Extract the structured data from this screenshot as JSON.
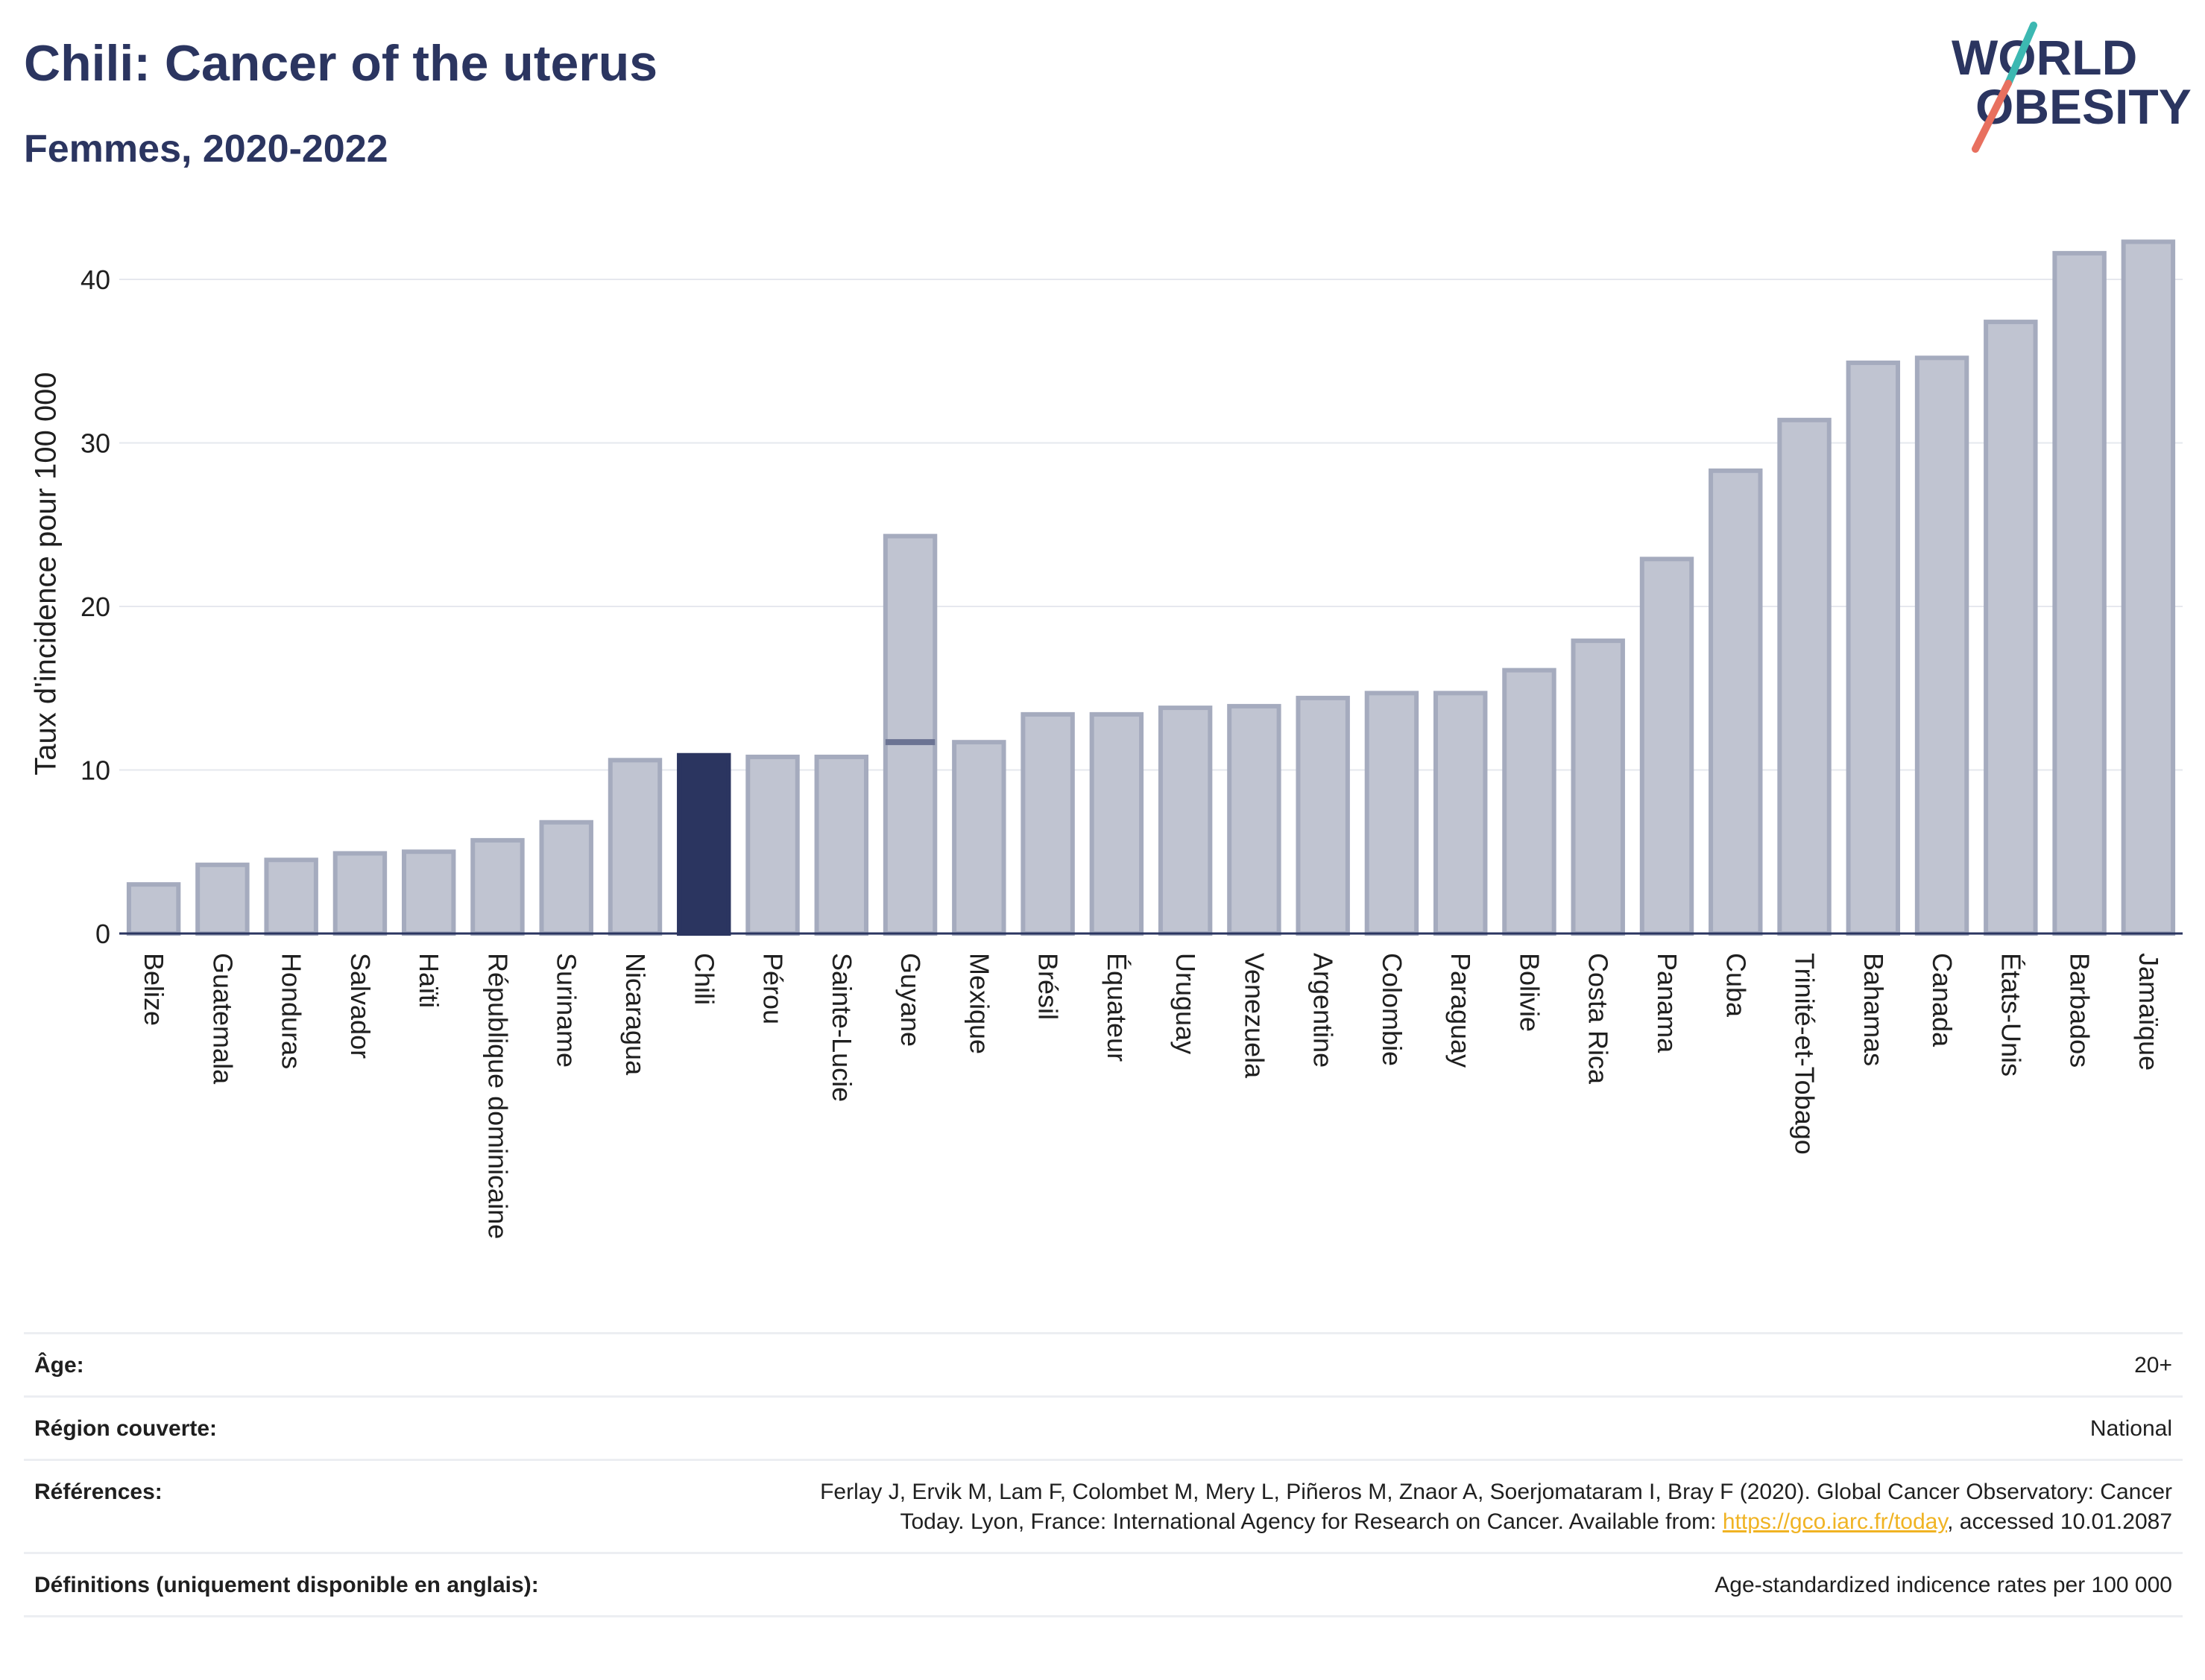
{
  "header": {
    "title": "Chili: Cancer of the uterus",
    "subtitle": "Femmes, 2020-2022"
  },
  "logo": {
    "line1": "WORLD",
    "line2": "OBESITY",
    "colors": {
      "text": "#2b3560",
      "slash_top": "#3cb8b2",
      "slash_bottom": "#e8705f"
    }
  },
  "colors": {
    "bar_default": "#c0c4d1",
    "bar_default_edge": "#a5abbe",
    "bar_highlight": "#2b3560",
    "gridline": "#e6e8ee",
    "axis": "#2b3560",
    "link": "#f0b323"
  },
  "chart_data": {
    "type": "bar",
    "ylabel": "Taux d'incidence pour 100 000",
    "ylim": [
      0,
      43
    ],
    "yticks": [
      0,
      10,
      20,
      30,
      40
    ],
    "grid": true,
    "highlight": "Chili",
    "categories": [
      "Belize",
      "Guatemala",
      "Honduras",
      "Salvador",
      "Haïti",
      "République dominicaine",
      "Suriname",
      "Nicaragua",
      "Chili",
      "Pérou",
      "Sainte-Lucie",
      "Guyane",
      "Mexique",
      "Brésil",
      "Équateur",
      "Uruguay",
      "Venezuela",
      "Argentine",
      "Colombie",
      "Paraguay",
      "Bolivie",
      "Costa Rica",
      "Panama",
      "Cuba",
      "Trinité-et-Tobago",
      "Bahamas",
      "Canada",
      "États-Unis",
      "Barbados",
      "Jamaïque"
    ],
    "values": [
      3.0,
      4.2,
      4.5,
      4.9,
      5.0,
      5.7,
      6.8,
      10.6,
      10.9,
      10.8,
      10.8,
      24.3,
      11.7,
      13.4,
      13.4,
      13.8,
      13.9,
      14.4,
      14.7,
      14.7,
      16.1,
      17.9,
      22.9,
      28.3,
      31.4,
      34.9,
      35.2,
      37.4,
      41.6,
      42.3
    ],
    "secondary_markers": [
      {
        "category": "Guyane",
        "value": 11.7
      }
    ]
  },
  "info_table": [
    {
      "label": "Âge:",
      "value": "20+"
    },
    {
      "label": "Région couverte:",
      "value": "National"
    },
    {
      "label": "Références:",
      "value_line1": "Ferlay J, Ervik M, Lam F, Colombet M, Mery L, Piñeros M, Znaor A, Soerjomataram I, Bray F (2020). Global Cancer Observatory: Cancer",
      "value_line2_pre": "Today. Lyon, France: International Agency for Research on Cancer. Available from: ",
      "link_text": "https://gco.iarc.fr/today",
      "value_line2_post": ", accessed 10.01.2087"
    },
    {
      "label": "Définitions (uniquement disponible en anglais):",
      "value": "Age-standardized indicence rates per 100 000"
    }
  ]
}
